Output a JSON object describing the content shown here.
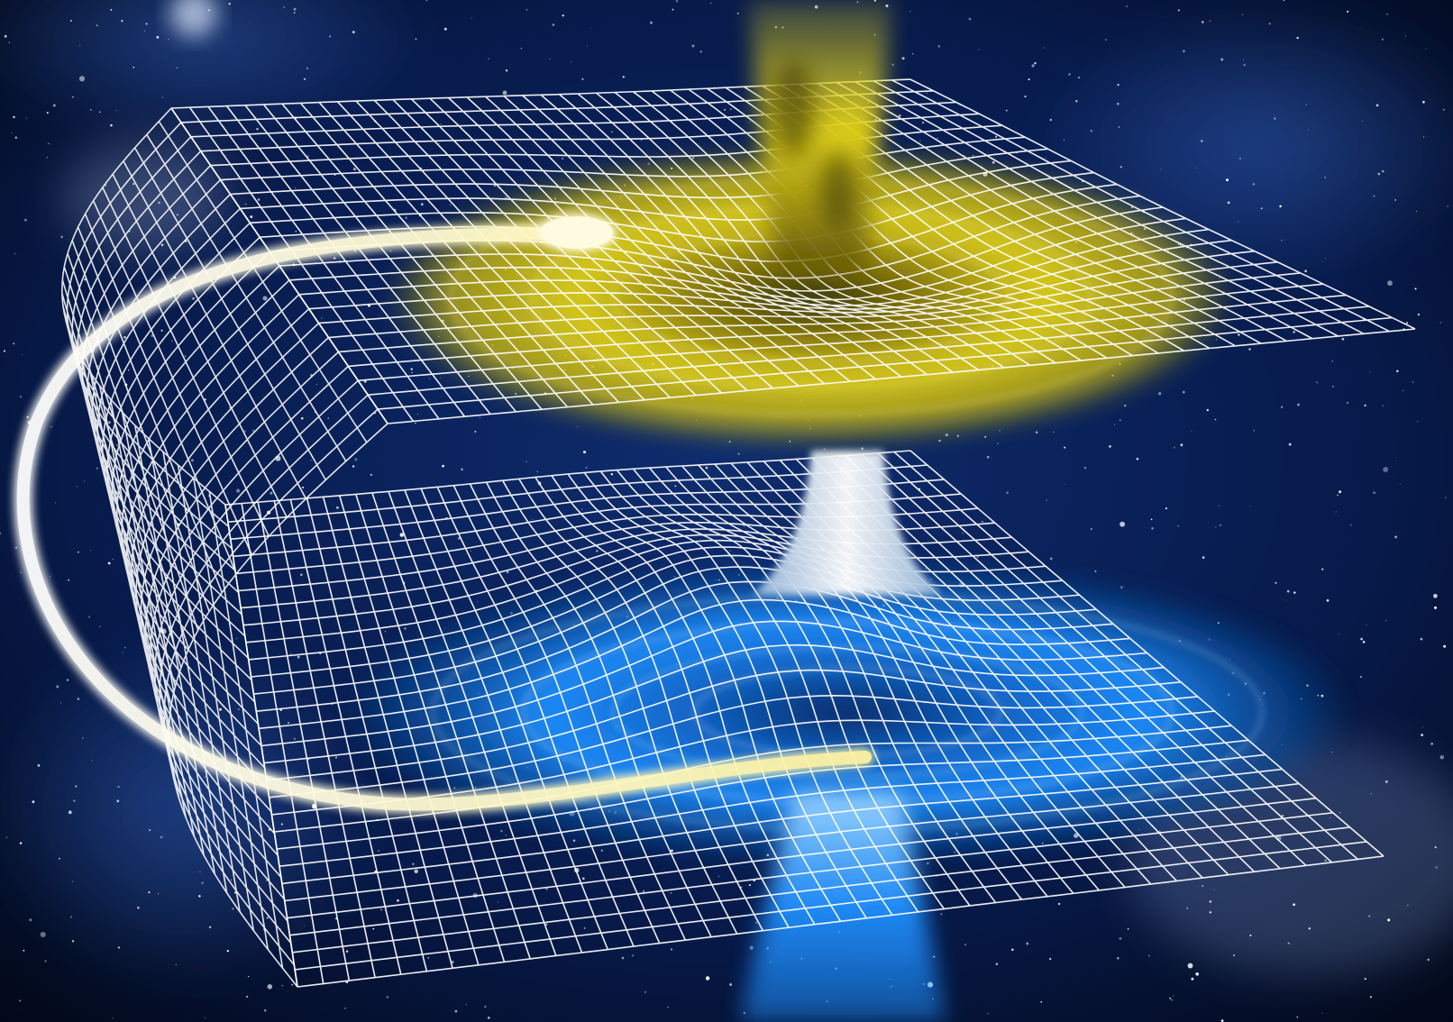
{
  "scene": {
    "subject": "wormhole-illustration",
    "elements": [
      "starfield",
      "upper-spacetime-grid",
      "lower-spacetime-grid",
      "yellow-accretion-disk",
      "blue-accretion-disk",
      "wormhole-throat",
      "yellow-jet",
      "blue-jet",
      "light-trail"
    ]
  },
  "colors": {
    "space_dark": "#020817",
    "space_mid": "#0e2c6e",
    "space_glow": "#3b6fd0",
    "grid": "#ffffff",
    "yellow_disk": "#e2d21a",
    "yellow_core": "#fff07a",
    "blue_disk": "#1e8fff",
    "blue_core": "#9fd6ff",
    "throat": "#eef7ff",
    "trail": "#fffde8"
  }
}
